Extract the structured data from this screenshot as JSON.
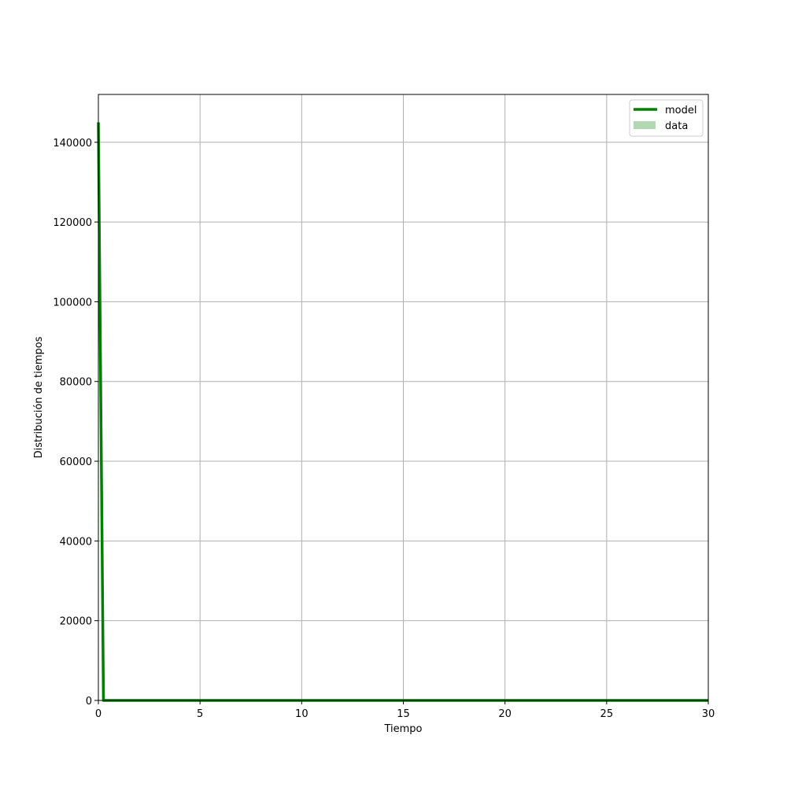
{
  "chart_data": {
    "type": "line",
    "title": "",
    "xlabel": "Tiempo",
    "ylabel": "Distribución de tiempos",
    "xlim": [
      0,
      30
    ],
    "ylim": [
      0,
      152000
    ],
    "grid": true,
    "legend_position": "top-right",
    "x_ticks": [
      0,
      5,
      10,
      15,
      20,
      25,
      30
    ],
    "y_ticks": [
      0,
      20000,
      40000,
      60000,
      80000,
      100000,
      120000,
      140000
    ],
    "series": [
      {
        "name": "model",
        "kind": "line",
        "color": "#008000",
        "x": [
          0,
          0.25,
          0.5,
          1,
          2,
          5,
          10,
          15,
          20,
          25,
          30
        ],
        "y": [
          145000,
          0,
          0,
          0,
          0,
          0,
          0,
          0,
          0,
          0,
          0
        ]
      },
      {
        "name": "data",
        "kind": "histogram",
        "color": "#b2d8b2",
        "x": [],
        "y": []
      }
    ]
  }
}
